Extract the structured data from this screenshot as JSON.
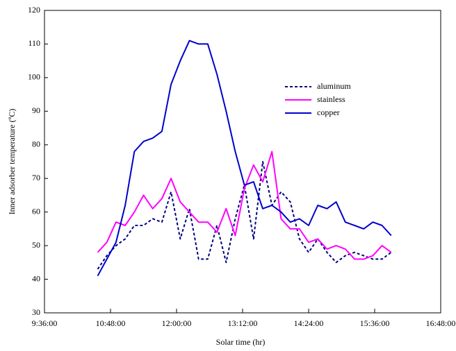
{
  "chart_data": {
    "type": "line",
    "xlabel": "Solar time (hr)",
    "ylabel": "Inner adsorber temperature (ºC)",
    "x": [
      "10:34:00",
      "10:44:00",
      "10:54:00",
      "11:04:00",
      "11:14:00",
      "11:24:00",
      "11:34:00",
      "11:44:00",
      "11:54:00",
      "12:04:00",
      "12:14:00",
      "12:24:00",
      "12:34:00",
      "12:44:00",
      "12:54:00",
      "13:04:00",
      "13:14:00",
      "13:24:00",
      "13:34:00",
      "13:44:00",
      "13:54:00",
      "14:04:00",
      "14:14:00",
      "14:24:00",
      "14:34:00",
      "14:44:00",
      "14:54:00",
      "15:04:00",
      "15:14:00",
      "15:24:00",
      "15:34:00",
      "15:44:00",
      "15:54:00"
    ],
    "series": [
      {
        "name": "aluminum",
        "color": "#000080",
        "dashed": true,
        "values": [
          43,
          47,
          50,
          52,
          56,
          56,
          58,
          57,
          66,
          52,
          61,
          46,
          46,
          56,
          45,
          58,
          68,
          52,
          75,
          62,
          66,
          63,
          52,
          48,
          52,
          48,
          45,
          47,
          48,
          47,
          46,
          46,
          48
        ]
      },
      {
        "name": "stainless",
        "color": "#ff00ff",
        "dashed": false,
        "values": [
          48,
          51,
          57,
          56,
          60,
          65,
          61,
          64,
          70,
          63,
          60,
          57,
          57,
          54,
          61,
          53,
          67,
          74,
          69,
          78,
          58,
          55,
          55,
          51,
          52,
          49,
          50,
          49,
          46,
          46,
          47,
          50,
          48
        ]
      },
      {
        "name": "copper",
        "color": "#0000cc",
        "dashed": false,
        "values": [
          41,
          46,
          51,
          62,
          78,
          81,
          82,
          84,
          98,
          105,
          111,
          110,
          110,
          101,
          90,
          78,
          68,
          69,
          61,
          62,
          60,
          57,
          58,
          56,
          62,
          61,
          63,
          57,
          56,
          55,
          57,
          56,
          53
        ]
      }
    ],
    "xlim": [
      "9:36:00",
      "16:48:00"
    ],
    "xticks": [
      "9:36:00",
      "10:48:00",
      "12:00:00",
      "13:12:00",
      "14:24:00",
      "15:36:00",
      "16:48:00"
    ],
    "ylim": [
      30,
      120
    ],
    "yticks": [
      30,
      40,
      50,
      60,
      70,
      80,
      90,
      100,
      110,
      120
    ],
    "grid": false,
    "legend": "upper right"
  }
}
